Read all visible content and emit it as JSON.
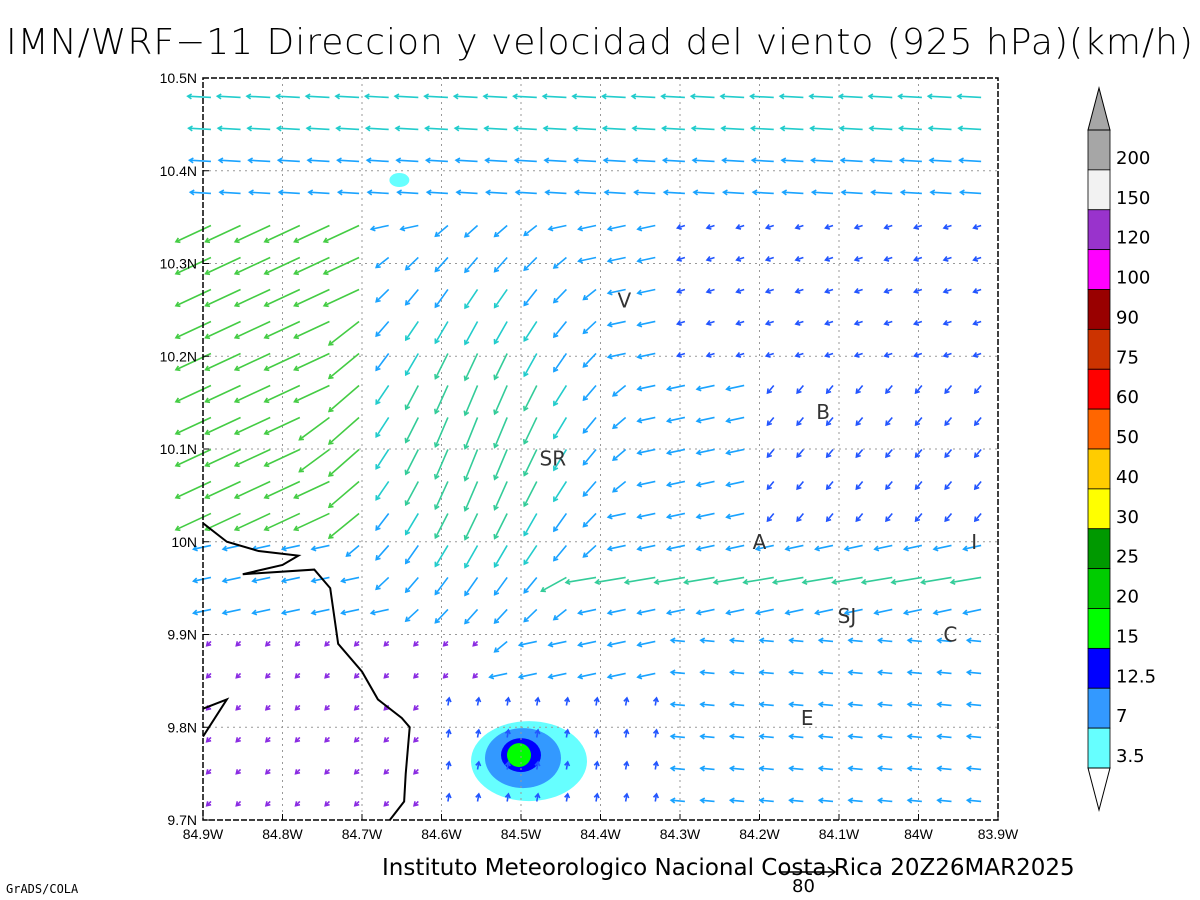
{
  "title": "IMN/WRF−11 Direccion y velocidad del viento (925 hPa)(km/h)",
  "footer": "Instituto Meteorologico Nacional Costa Rica  20Z26MAR2025",
  "software_credit": "GrADS/COLA",
  "reference_vector": {
    "label": "80",
    "speed_kmh": 80
  },
  "map": {
    "lon_range": [
      -84.9,
      -83.9
    ],
    "lat_range": [
      9.7,
      10.5
    ],
    "grid": "dotted",
    "lon_labels": [
      "84.9W",
      "84.8W",
      "84.7W",
      "84.6W",
      "84.5W",
      "84.4W",
      "84.3W",
      "84.2W",
      "84.1W",
      "84W",
      "83.9W"
    ],
    "lat_labels": [
      "9.7N",
      "9.8N",
      "9.9N",
      "10N",
      "10.1N",
      "10.2N",
      "10.3N",
      "10.4N",
      "10.5N"
    ]
  },
  "city_labels": [
    {
      "text": "V",
      "lon": -84.37,
      "lat": 10.26
    },
    {
      "text": "SR",
      "lon": -84.46,
      "lat": 10.09
    },
    {
      "text": "B",
      "lon": -84.12,
      "lat": 10.14
    },
    {
      "text": "A",
      "lon": -84.2,
      "lat": 10.0
    },
    {
      "text": "I",
      "lon": -83.93,
      "lat": 10.0
    },
    {
      "text": "SJ",
      "lon": -84.09,
      "lat": 9.92
    },
    {
      "text": "C",
      "lon": -83.96,
      "lat": 9.9
    },
    {
      "text": "E",
      "lon": -84.14,
      "lat": 9.81
    }
  ],
  "colorbar": {
    "labels": [
      "3.5",
      "7",
      "12.5",
      "15",
      "20",
      "25",
      "30",
      "40",
      "50",
      "60",
      "75",
      "90",
      "100",
      "120",
      "150",
      "200"
    ],
    "colors": [
      "#66ffff",
      "#3399ff",
      "#0000ff",
      "#00ff00",
      "#00cc00",
      "#009900",
      "#ffff00",
      "#ffcc00",
      "#ff6600",
      "#ff0000",
      "#cc3300",
      "#990000",
      "#ff00ff",
      "#9933cc",
      "#f2f2f2",
      "#a6a6a6"
    ]
  },
  "colors": {
    "frame": "#000000",
    "coast": "#000000",
    "grid": "#999999"
  }
}
